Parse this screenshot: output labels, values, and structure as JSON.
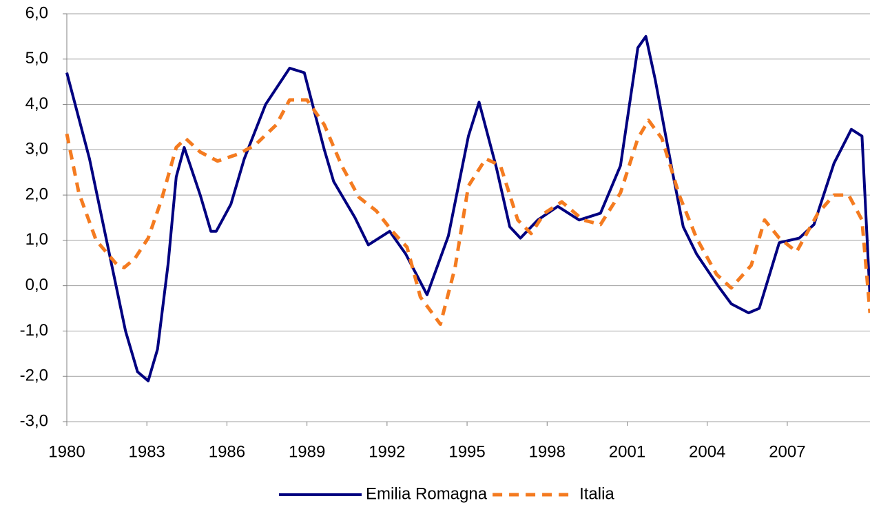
{
  "chart_data": {
    "type": "line",
    "legend": "bottom",
    "grid": true,
    "xlim": [
      1980,
      2010.1
    ],
    "xticks": [
      1980,
      1983,
      1986,
      1989,
      1992,
      1995,
      1998,
      2001,
      2004,
      2007
    ],
    "ylim": [
      -3,
      6
    ],
    "yticks": [
      {
        "value": -3,
        "label": "-3,0"
      },
      {
        "value": -2,
        "label": "-2,0"
      },
      {
        "value": -1,
        "label": "-1,0"
      },
      {
        "value": 0,
        "label": "0,0"
      },
      {
        "value": 1,
        "label": "1,0"
      },
      {
        "value": 2,
        "label": "2,0"
      },
      {
        "value": 3,
        "label": "3,0"
      },
      {
        "value": 4,
        "label": "4,0"
      },
      {
        "value": 5,
        "label": "5,0"
      },
      {
        "value": 6,
        "label": "6,0"
      }
    ],
    "series": [
      {
        "name": "Emilia Romagna",
        "color": "#000080",
        "dash": false,
        "x": [
          1980,
          1980.85,
          1982.2,
          1982.65,
          1983.05,
          1983.4,
          1983.8,
          1984.1,
          1984.4,
          1985.0,
          1985.4,
          1985.6,
          1986.15,
          1986.65,
          1987.45,
          1988.35,
          1988.9,
          1989.65,
          1990.0,
          1990.8,
          1991.3,
          1992.1,
          1992.7,
          1993.5,
          1994.3,
          1995.05,
          1995.45,
          1996.1,
          1996.6,
          1997.0,
          1997.65,
          1998.4,
          1999.2,
          2000.0,
          2000.75,
          2001.4,
          2001.7,
          2002.05,
          2002.7,
          2003.1,
          2003.6,
          2004.4,
          2004.9,
          2005.55,
          2005.95,
          2006.7,
          2007.45,
          2008.0,
          2008.75,
          2009.4,
          2009.8,
          2010.1
        ],
        "values": [
          4.7,
          2.8,
          -1.0,
          -1.9,
          -2.1,
          -1.4,
          0.5,
          2.4,
          3.05,
          2.0,
          1.2,
          1.2,
          1.8,
          2.8,
          4.0,
          4.8,
          4.7,
          3.0,
          2.3,
          1.5,
          0.9,
          1.2,
          0.7,
          -0.2,
          1.1,
          3.3,
          4.05,
          2.6,
          1.3,
          1.05,
          1.45,
          1.75,
          1.45,
          1.6,
          2.65,
          5.25,
          5.5,
          4.55,
          2.5,
          1.3,
          0.7,
          0.0,
          -0.4,
          -0.6,
          -0.5,
          0.95,
          1.05,
          1.35,
          2.7,
          3.45,
          3.3,
          -0.25
        ]
      },
      {
        "name": "Italia",
        "color": "#f47b20",
        "dash": true,
        "x": [
          1980,
          1980.45,
          1981.1,
          1981.9,
          1982.15,
          1982.55,
          1983.05,
          1983.55,
          1984.1,
          1984.45,
          1985.0,
          1985.65,
          1986.4,
          1987.05,
          1987.85,
          1988.35,
          1989.0,
          1989.65,
          1990.3,
          1990.95,
          1991.6,
          1992.2,
          1992.75,
          1993.25,
          1994.0,
          1994.55,
          1995.05,
          1995.7,
          1996.25,
          1996.9,
          1997.4,
          1997.9,
          1998.55,
          1999.35,
          2000.0,
          2000.75,
          2001.4,
          2001.8,
          2002.3,
          2002.95,
          2003.6,
          2004.35,
          2004.9,
          2005.65,
          2006.15,
          2006.7,
          2007.35,
          2008.15,
          2008.75,
          2009.3,
          2009.8,
          2010.1
        ],
        "values": [
          3.35,
          2.05,
          1.0,
          0.45,
          0.4,
          0.6,
          1.05,
          1.9,
          3.05,
          3.25,
          2.95,
          2.75,
          2.9,
          3.1,
          3.55,
          4.1,
          4.1,
          3.55,
          2.65,
          1.95,
          1.65,
          1.2,
          0.85,
          -0.25,
          -0.85,
          0.4,
          2.2,
          2.8,
          2.65,
          1.45,
          1.15,
          1.6,
          1.85,
          1.45,
          1.35,
          2.05,
          3.25,
          3.65,
          3.25,
          2.0,
          1.05,
          0.25,
          -0.05,
          0.45,
          1.45,
          1.05,
          0.75,
          1.6,
          2.0,
          2.0,
          1.45,
          -0.6
        ]
      }
    ]
  }
}
